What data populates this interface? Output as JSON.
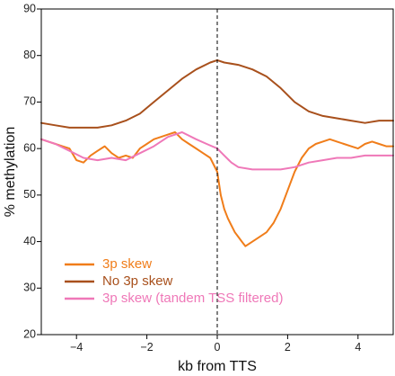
{
  "chart_data": {
    "type": "line",
    "title": "",
    "xlabel": "kb from TTS",
    "ylabel": "% methylation",
    "xlim": [
      -5,
      5
    ],
    "ylim": [
      20,
      90
    ],
    "xticks": [
      -4,
      -2,
      0,
      2,
      4
    ],
    "yticks": [
      20,
      30,
      40,
      50,
      60,
      70,
      80,
      90
    ],
    "grid": false,
    "legend": "bottom-left",
    "vline": {
      "x": 0,
      "style": "dashed"
    },
    "series": [
      {
        "name": "3p skew",
        "color": "#f07d1a",
        "x": [
          -5,
          -4.8,
          -4.6,
          -4.4,
          -4.2,
          -4.0,
          -3.8,
          -3.6,
          -3.4,
          -3.2,
          -3.0,
          -2.8,
          -2.6,
          -2.4,
          -2.2,
          -2.0,
          -1.8,
          -1.6,
          -1.4,
          -1.2,
          -1.0,
          -0.8,
          -0.6,
          -0.4,
          -0.2,
          0.0,
          0.1,
          0.2,
          0.3,
          0.4,
          0.5,
          0.6,
          0.7,
          0.8,
          1.0,
          1.2,
          1.4,
          1.6,
          1.8,
          2.0,
          2.2,
          2.4,
          2.6,
          2.8,
          3.0,
          3.2,
          3.4,
          3.6,
          3.8,
          4.0,
          4.2,
          4.4,
          4.6,
          4.8,
          5.0
        ],
        "y": [
          62,
          61.5,
          61,
          60.5,
          60,
          57.5,
          57,
          58.5,
          59.5,
          60.5,
          59,
          58,
          58.5,
          58,
          60,
          61,
          62,
          62.5,
          63,
          63.5,
          62,
          61,
          60,
          59,
          58,
          55,
          50,
          47,
          45,
          43.5,
          42,
          41,
          40,
          39,
          40,
          41,
          42,
          44,
          47,
          51,
          55,
          58,
          60,
          61,
          61.5,
          62,
          61.5,
          61,
          60.5,
          60,
          61,
          61.5,
          61,
          60.5,
          60.5
        ]
      },
      {
        "name": "No 3p skew",
        "color": "#a8501c",
        "x": [
          -5,
          -4.6,
          -4.2,
          -3.8,
          -3.4,
          -3.0,
          -2.6,
          -2.2,
          -1.8,
          -1.4,
          -1.0,
          -0.6,
          -0.2,
          0.0,
          0.2,
          0.6,
          1.0,
          1.4,
          1.8,
          2.2,
          2.6,
          3.0,
          3.4,
          3.8,
          4.2,
          4.6,
          5.0
        ],
        "y": [
          65.5,
          65,
          64.5,
          64.5,
          64.5,
          65,
          66,
          67.5,
          70,
          72.5,
          75,
          77,
          78.5,
          79,
          78.5,
          78,
          77,
          75.5,
          73,
          70,
          68,
          67,
          66.5,
          66,
          65.5,
          66,
          66
        ]
      },
      {
        "name": "3p skew (tandem TSS filtered)",
        "color": "#ef78b8",
        "x": [
          -5,
          -4.6,
          -4.2,
          -3.8,
          -3.4,
          -3.0,
          -2.6,
          -2.2,
          -1.8,
          -1.4,
          -1.0,
          -0.6,
          -0.3,
          0.0,
          0.2,
          0.4,
          0.6,
          1.0,
          1.4,
          1.8,
          2.2,
          2.6,
          3.0,
          3.4,
          3.8,
          4.2,
          4.6,
          5.0
        ],
        "y": [
          62,
          61,
          59.5,
          58,
          57.5,
          58,
          57.5,
          59,
          60.5,
          62.5,
          63.5,
          62,
          61,
          60,
          58.5,
          57,
          56,
          55.5,
          55.5,
          55.5,
          56,
          57,
          57.5,
          58,
          58,
          58.5,
          58.5,
          58.5
        ]
      }
    ]
  }
}
